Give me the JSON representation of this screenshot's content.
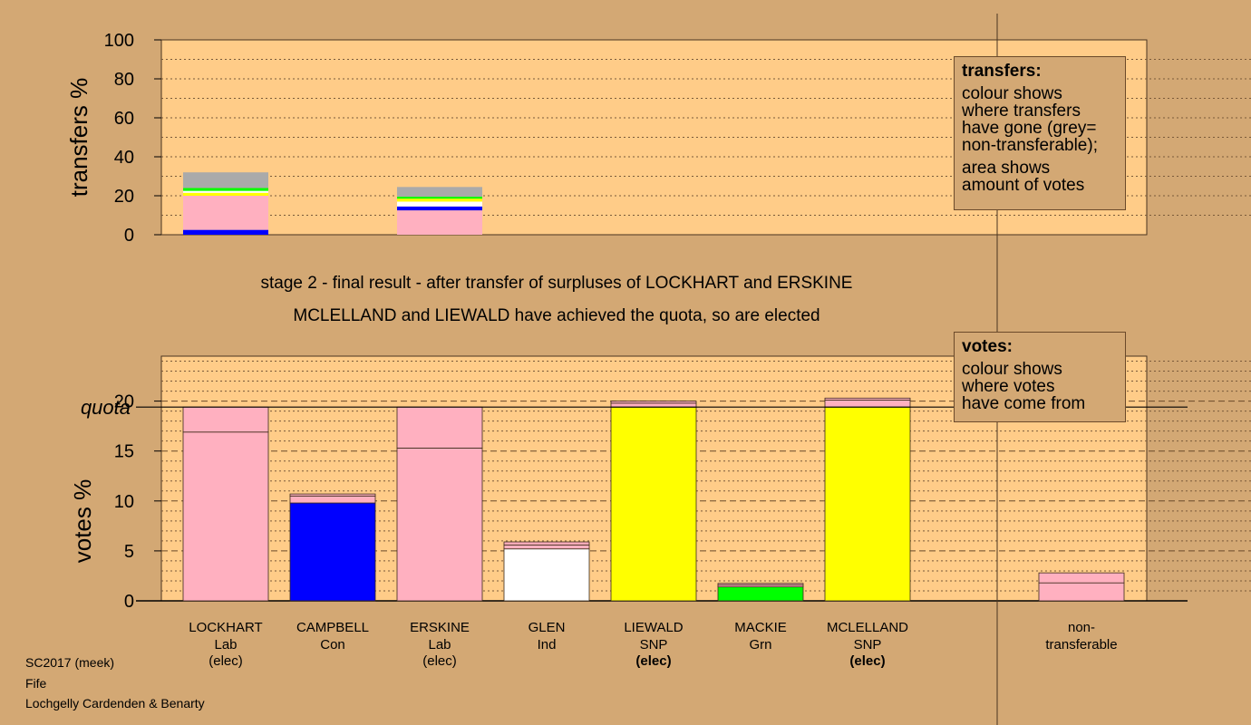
{
  "chart_data": [
    {
      "type": "bar",
      "stacked": true,
      "ylabel": "transfers %",
      "ylim": [
        0,
        100
      ],
      "yticks": [
        0,
        20,
        40,
        60,
        80,
        100
      ],
      "bars": [
        {
          "category": "LOCKHART",
          "segments": [
            {
              "from": 0,
              "to": 2.5,
              "color": "#0000ff"
            },
            {
              "from": 2.5,
              "to": 20,
              "color": "#ffb0c0"
            },
            {
              "from": 20,
              "to": 21.5,
              "color": "#ffff00"
            },
            {
              "from": 21.5,
              "to": 22.5,
              "color": "#ffffff"
            },
            {
              "from": 22.5,
              "to": 24,
              "color": "#00ff00"
            },
            {
              "from": 24,
              "to": 32,
              "color": "#aaaaaa"
            }
          ]
        },
        {
          "category": "ERSKINE",
          "segments": [
            {
              "from": 0,
              "to": 12.5,
              "color": "#ffb0c0"
            },
            {
              "from": 12.5,
              "to": 14.5,
              "color": "#0000ff"
            },
            {
              "from": 14.5,
              "to": 17,
              "color": "#ffffff"
            },
            {
              "from": 17,
              "to": 18.5,
              "color": "#ffff00"
            },
            {
              "from": 18.5,
              "to": 19.5,
              "color": "#00ff00"
            },
            {
              "from": 19.5,
              "to": 24.5,
              "color": "#aaaaaa"
            }
          ]
        }
      ]
    },
    {
      "type": "bar",
      "stacked": true,
      "ylabel": "votes %",
      "ylim": [
        0,
        24.5
      ],
      "yticks": [
        0,
        5,
        10,
        15,
        20
      ],
      "quota": 19.4,
      "quota_label": "quota",
      "categories": [
        {
          "name": "LOCKHART",
          "party": "Lab",
          "status": "(elec)",
          "bold": false,
          "segments": [
            {
              "from": 0,
              "to": 16.9,
              "color": "#ffb0c0"
            },
            {
              "from": 16.9,
              "to": 19.4,
              "color": "#ffb0c0"
            }
          ]
        },
        {
          "name": "CAMPBELL",
          "party": "Con",
          "status": "",
          "bold": false,
          "segments": [
            {
              "from": 0,
              "to": 9.8,
              "color": "#0000ff"
            },
            {
              "from": 9.8,
              "to": 10.5,
              "color": "#ffb0c0"
            },
            {
              "from": 10.5,
              "to": 10.7,
              "color": "#ffb0c0"
            }
          ]
        },
        {
          "name": "ERSKINE",
          "party": "Lab",
          "status": "(elec)",
          "bold": false,
          "segments": [
            {
              "from": 0,
              "to": 15.3,
              "color": "#ffb0c0"
            },
            {
              "from": 15.3,
              "to": 19.4,
              "color": "#ffb0c0"
            }
          ]
        },
        {
          "name": "GLEN",
          "party": "Ind",
          "status": "",
          "bold": false,
          "segments": [
            {
              "from": 0,
              "to": 5.2,
              "color": "#ffffff"
            },
            {
              "from": 5.2,
              "to": 5.6,
              "color": "#ffb0c0"
            },
            {
              "from": 5.6,
              "to": 5.9,
              "color": "#ffb0c0"
            }
          ]
        },
        {
          "name": "LIEWALD",
          "party": "SNP",
          "status": "(elec)",
          "bold": true,
          "segments": [
            {
              "from": 0,
              "to": 19.4,
              "color": "#ffff00"
            },
            {
              "from": 19.4,
              "to": 19.8,
              "color": "#ffb0c0"
            },
            {
              "from": 19.8,
              "to": 20.0,
              "color": "#ffb0c0"
            }
          ]
        },
        {
          "name": "MACKIE",
          "party": "Grn",
          "status": "",
          "bold": false,
          "segments": [
            {
              "from": 0,
              "to": 1.4,
              "color": "#00ff00"
            },
            {
              "from": 1.4,
              "to": 1.6,
              "color": "#ffb0c0"
            },
            {
              "from": 1.6,
              "to": 1.75,
              "color": "#ffb0c0"
            }
          ]
        },
        {
          "name": "MCLELLAND",
          "party": "SNP",
          "status": "(elec)",
          "bold": true,
          "segments": [
            {
              "from": 0,
              "to": 19.4,
              "color": "#ffff00"
            },
            {
              "from": 19.4,
              "to": 20.1,
              "color": "#ffb0c0"
            },
            {
              "from": 20.1,
              "to": 20.3,
              "color": "#ffb0c0"
            }
          ]
        }
      ],
      "nontransferable": {
        "label1": "non-",
        "label2": "transferable",
        "segments": [
          {
            "from": 0,
            "to": 1.8,
            "color": "#ffb0c0"
          },
          {
            "from": 1.8,
            "to": 2.8,
            "color": "#ffb0c0"
          }
        ]
      }
    }
  ],
  "stage_line1": "stage 2 - final result - after transfer of surpluses of LOCKHART and ERSKINE",
  "stage_line2": "MCLELLAND and LIEWALD have achieved the quota, so are elected",
  "legend_transfers": {
    "title": "transfers:",
    "lines": [
      "colour shows",
      "where transfers",
      "have gone (grey=",
      "non-transferable);"
    ],
    "lines2": [
      "area shows",
      "amount of votes"
    ]
  },
  "legend_votes": {
    "title": "votes:",
    "lines": [
      "colour shows",
      "where votes",
      "have come from"
    ]
  },
  "footer": [
    "SC2017 (meek)",
    "Fife",
    "Lochgelly Cardenden & Benarty"
  ],
  "colors": {
    "background": "#d3a874",
    "plot": "#ffcc88",
    "pink": "#ffb0c0",
    "blue": "#0000ff",
    "yellow": "#ffff00",
    "green": "#00ff00",
    "grey": "#aaaaaa"
  }
}
